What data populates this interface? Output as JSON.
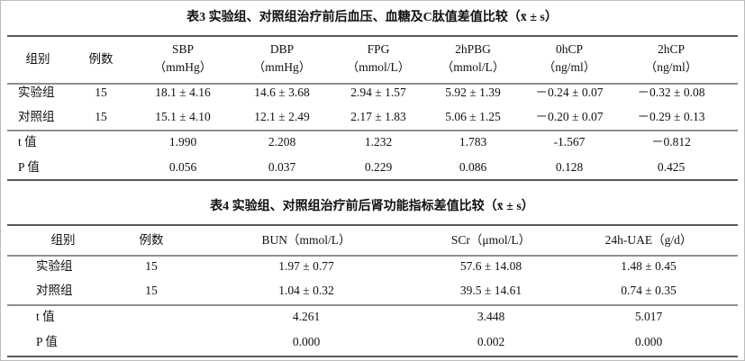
{
  "table3": {
    "title": "表3  实验组、对照组治疗前后血压、血糖及C肽值差值比较（x̄ ± s）",
    "header": [
      [
        "组别"
      ],
      [
        "例数"
      ],
      [
        "SBP",
        "（mmHg）"
      ],
      [
        "DBP",
        "（mmHg）"
      ],
      [
        "FPG",
        "（mmol/L）"
      ],
      [
        "2hPBG",
        "（mmol/L）"
      ],
      [
        "0hCP",
        "（ng/ml）"
      ],
      [
        "2hCP",
        "（ng/ml）"
      ]
    ],
    "rows": [
      [
        "实验组",
        "15",
        "18.1 ± 4.16",
        "14.6 ± 3.68",
        "2.94 ± 1.57",
        "5.92 ± 1.39",
        "－0.24 ± 0.07",
        "－0.32 ± 0.08"
      ],
      [
        "对照组",
        "15",
        "15.1 ± 4.10",
        "12.1 ± 2.49",
        "2.17 ± 1.83",
        "5.06 ± 1.25",
        "－0.20 ± 0.07",
        "－0.29 ± 0.13"
      ],
      [
        "t 值",
        null,
        "1.990",
        "2.208",
        "1.232",
        "1.783",
        "-1.567",
        "－0.812"
      ],
      [
        "P 值",
        null,
        "0.056",
        "0.037",
        "0.229",
        "0.086",
        "0.128",
        "0.425"
      ]
    ]
  },
  "table4": {
    "title": "表4  实验组、对照组治疗前后肾功能指标差值比较（x̄ ± s）",
    "header": [
      [
        "组别"
      ],
      [
        "例数"
      ],
      [
        "BUN（mmol/L）"
      ],
      [
        "SCr（μmol/L）"
      ],
      [
        "24h-UAE（g/d）"
      ]
    ],
    "rows": [
      [
        "实验组",
        "15",
        "1.97 ± 0.77",
        "57.6 ± 14.08",
        "1.48 ± 0.45"
      ],
      [
        "对照组",
        "15",
        "1.04 ± 0.32",
        "39.5 ± 14.61",
        "0.74 ± 0.35"
      ],
      [
        "t 值",
        null,
        "4.261",
        "3.448",
        "5.017"
      ],
      [
        "P 值",
        null,
        "0.000",
        "0.002",
        "0.000"
      ]
    ]
  }
}
